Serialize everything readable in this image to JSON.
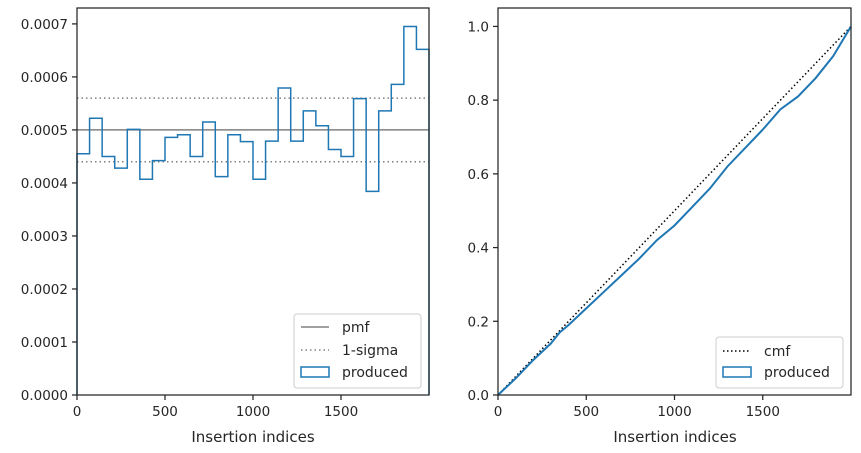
{
  "chart_data": [
    {
      "type": "step",
      "xlabel": "Insertion indices",
      "xlim": [
        0,
        2000
      ],
      "ylim": [
        0,
        0.00073
      ],
      "xticks": [
        0,
        500,
        1000,
        1500
      ],
      "xtick_labels": [
        "0",
        "500",
        "1000",
        "1500"
      ],
      "yticks": [
        0,
        0.0001,
        0.0002,
        0.0003,
        0.0004,
        0.0005,
        0.0006,
        0.0007
      ],
      "ytick_labels": [
        "0.0000",
        "0.0001",
        "0.0002",
        "0.0003",
        "0.0004",
        "0.0005",
        "0.0006",
        "0.0007"
      ],
      "pmf": 0.0005,
      "sigma_band": [
        0.00044,
        0.00056
      ],
      "bin_edges": [
        0,
        71.4,
        142.9,
        214.3,
        285.7,
        357.1,
        428.6,
        500,
        571.4,
        642.9,
        714.3,
        785.7,
        857.1,
        928.6,
        1000,
        1071.4,
        1142.9,
        1214.3,
        1285.7,
        1357.1,
        1428.6,
        1500,
        1571.4,
        1642.9,
        1714.3,
        1785.7,
        1857.1,
        1928.6,
        2000
      ],
      "produced": [
        0.000455,
        0.000522,
        0.00045,
        0.000428,
        0.000501,
        0.000407,
        0.000442,
        0.000486,
        0.000491,
        0.00045,
        0.000515,
        0.000412,
        0.000491,
        0.000478,
        0.000407,
        0.000479,
        0.000579,
        0.000479,
        0.000536,
        0.000508,
        0.000463,
        0.00045,
        0.000559,
        0.000384,
        0.000536,
        0.000586,
        0.000695,
        0.000652
      ],
      "legend": {
        "placement": "lower-right",
        "entries": [
          {
            "label": "pmf",
            "style": "solid-line",
            "color": "#808080"
          },
          {
            "label": "1-sigma",
            "style": "dotted-line",
            "color": "#808080"
          },
          {
            "label": "produced",
            "style": "step-box",
            "color": "#1f77b4"
          }
        ]
      },
      "colors": {
        "produced": "#1f77b4",
        "reference": "#808080"
      }
    },
    {
      "type": "line",
      "xlabel": "Insertion indices",
      "xlim": [
        0,
        2000
      ],
      "ylim": [
        0,
        1.05
      ],
      "xticks": [
        0,
        500,
        1000,
        1500
      ],
      "xtick_labels": [
        "0",
        "500",
        "1000",
        "1500"
      ],
      "yticks": [
        0,
        0.2,
        0.4,
        0.6,
        0.8,
        1.0
      ],
      "ytick_labels": [
        "0.0",
        "0.2",
        "0.4",
        "0.6",
        "0.8",
        "1.0"
      ],
      "cmf": {
        "x": [
          0,
          2000
        ],
        "y": [
          0,
          1.0
        ]
      },
      "produced": {
        "x": [
          0,
          100,
          200,
          300,
          350,
          400,
          500,
          600,
          700,
          800,
          900,
          1000,
          1100,
          1200,
          1300,
          1400,
          1500,
          1600,
          1700,
          1800,
          1900,
          1950,
          2000
        ],
        "y": [
          0,
          0.045,
          0.095,
          0.14,
          0.17,
          0.19,
          0.235,
          0.28,
          0.325,
          0.37,
          0.42,
          0.46,
          0.51,
          0.56,
          0.62,
          0.67,
          0.72,
          0.775,
          0.81,
          0.86,
          0.92,
          0.96,
          1.0
        ]
      },
      "legend": {
        "placement": "lower-right",
        "entries": [
          {
            "label": "cmf",
            "style": "dotted-line",
            "color": "#000000"
          },
          {
            "label": "produced",
            "style": "step-box",
            "color": "#1f77b4"
          }
        ]
      },
      "colors": {
        "produced": "#1f77b4",
        "cmf": "#000000"
      }
    }
  ]
}
